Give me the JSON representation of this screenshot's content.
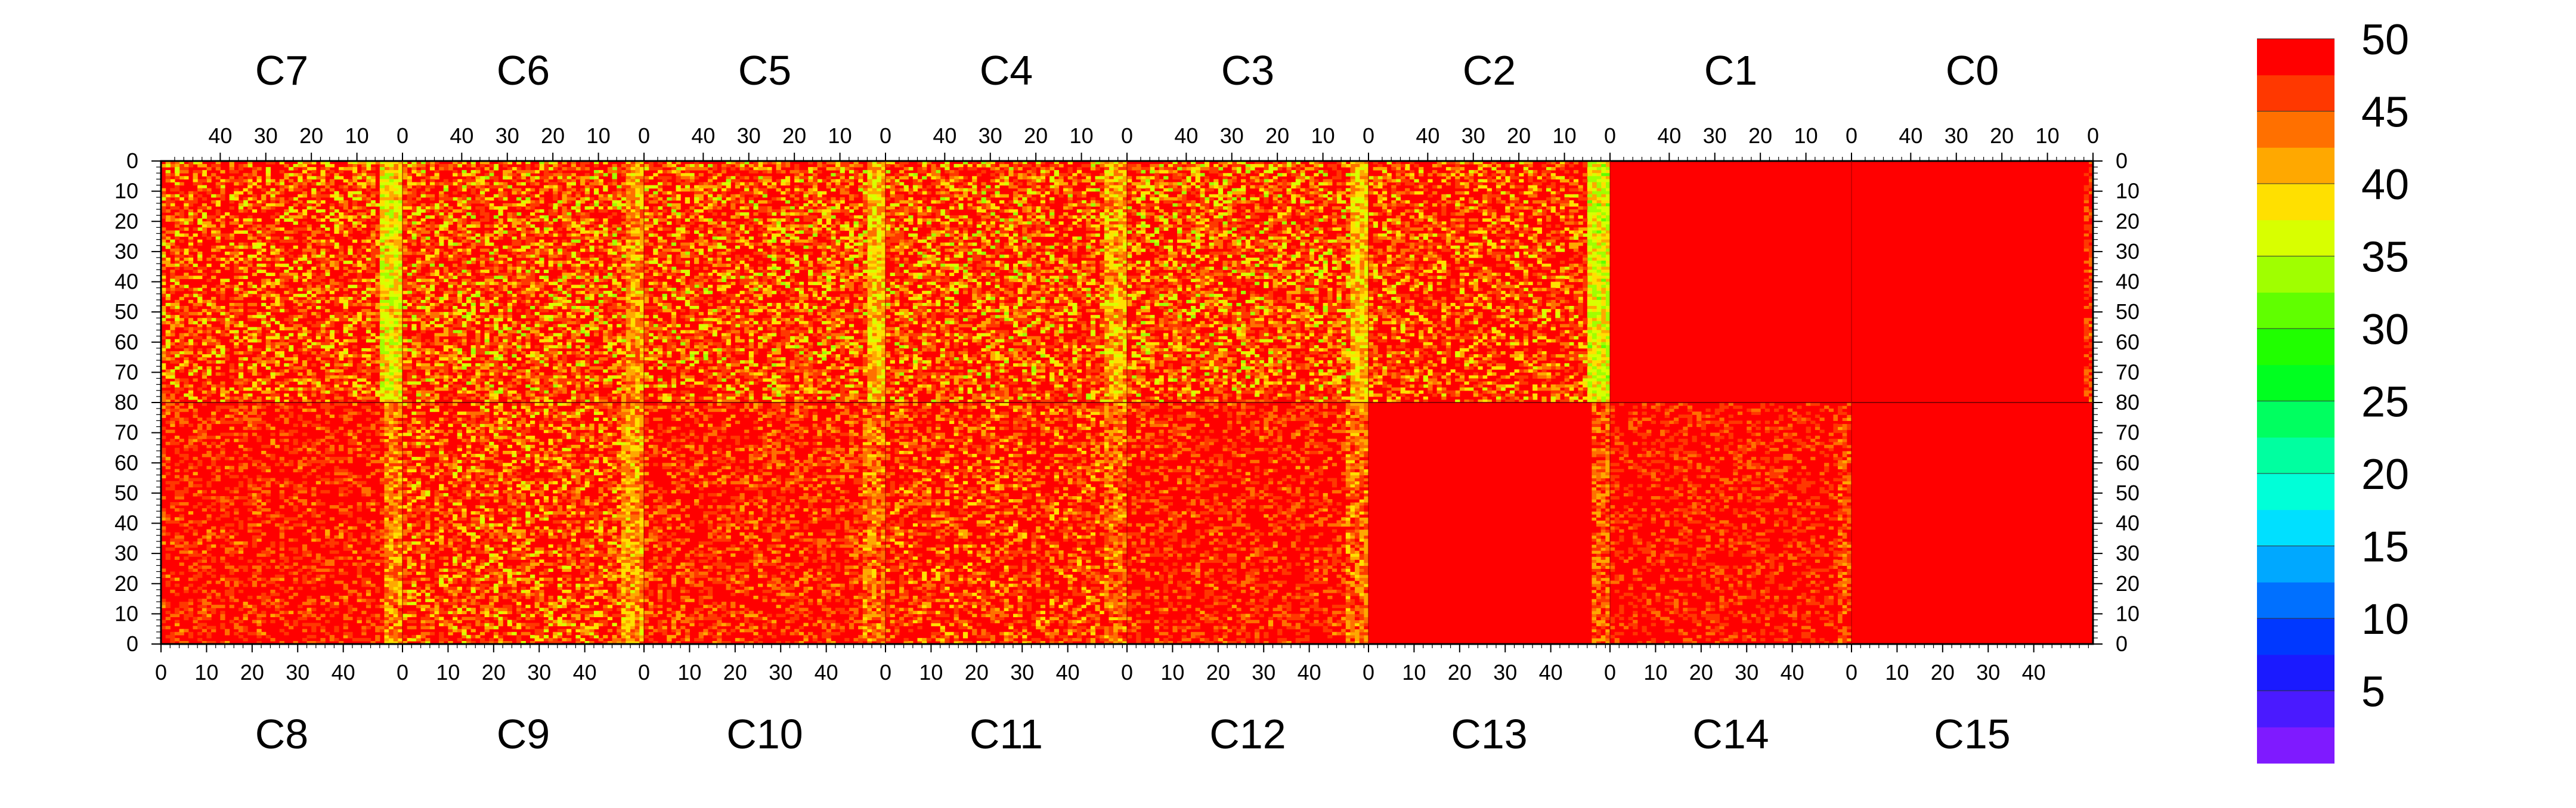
{
  "chart_data": {
    "type": "heatmap",
    "title": "",
    "xlabel": "",
    "ylabel": "",
    "description_grid": "16 channel blocks C0..C15 arranged in two rows of 8 (top row reversed C7..C0, bottom row C8..C15). Each block has x from 0 to 53 and y from 0 to 80; top blocks' y axis increases downward from the midline, bottom blocks' y increases upward from the midline.",
    "blocks_top": [
      "C7",
      "C6",
      "C5",
      "C4",
      "C3",
      "C2",
      "C1",
      "C0"
    ],
    "blocks_bottom": [
      "C8",
      "C9",
      "C10",
      "C11",
      "C12",
      "C13",
      "C14",
      "C15"
    ],
    "x_range": [
      0,
      53
    ],
    "y_range": [
      0,
      80
    ],
    "x_ticks": [
      "0",
      "10",
      "20",
      "30",
      "40"
    ],
    "x_ticks_top": [
      "40",
      "30",
      "20",
      "10",
      "0"
    ],
    "y_ticks_top": [
      "0",
      "10",
      "20",
      "30",
      "40",
      "50",
      "60",
      "70",
      "80"
    ],
    "y_ticks_bottom": [
      "70",
      "60",
      "50",
      "40",
      "30",
      "20",
      "10",
      "0"
    ],
    "colorbar": {
      "min": 0,
      "max": 50,
      "tick_labels": [
        "50",
        "45",
        "40",
        "35",
        "30",
        "25",
        "20",
        "15",
        "10",
        "5"
      ],
      "tick_values": [
        50,
        45,
        40,
        35,
        30,
        25,
        20,
        15,
        10,
        5
      ],
      "colors": [
        "#7f1aff",
        "#4a1aff",
        "#1a1aff",
        "#0038ff",
        "#0070ff",
        "#00a8ff",
        "#00e0ff",
        "#00ffd8",
        "#00ffa0",
        "#00ff60",
        "#00ff20",
        "#20ff00",
        "#60ff00",
        "#a0ff00",
        "#d8ff00",
        "#ffe000",
        "#ffa800",
        "#ff7000",
        "#ff3800",
        "#ff0000"
      ]
    },
    "blocks": {
      "C7": {
        "base": 49.3,
        "variability": 6.5,
        "band_x": [
          0,
          5
        ],
        "band_value": 38
      },
      "C6": {
        "base": 48.7,
        "variability": 7.0,
        "band_x": [
          0,
          4
        ],
        "band_value": 42
      },
      "C5": {
        "base": 48.9,
        "variability": 6.8,
        "band_x": [
          0,
          4
        ],
        "band_value": 40
      },
      "C4": {
        "base": 48.9,
        "variability": 6.8,
        "band_x": [
          0,
          5
        ],
        "band_value": 41
      },
      "C3": {
        "base": 48.8,
        "variability": 7.0,
        "band_x": [
          0,
          4
        ],
        "band_value": 40
      },
      "C2": {
        "base": 49.3,
        "variability": 6.0,
        "band_x": [
          0,
          5
        ],
        "band_value": 37
      },
      "C1": {
        "base": 50.0,
        "variability": 0.2,
        "band_x": [
          0,
          0
        ],
        "band_value": 50
      },
      "C0": {
        "base": 49.9,
        "variability": 0.8,
        "band_x": [
          0,
          2
        ],
        "band_value": 47
      },
      "C8": {
        "base": 49.6,
        "variability": 3.5,
        "band_x": [
          49,
          53
        ],
        "band_value": 43
      },
      "C9": {
        "base": 49.0,
        "variability": 6.0,
        "band_x": [
          48,
          53
        ],
        "band_value": 42
      },
      "C10": {
        "base": 49.5,
        "variability": 4.0,
        "band_x": [
          48,
          53
        ],
        "band_value": 44
      },
      "C11": {
        "base": 49.3,
        "variability": 5.0,
        "band_x": [
          48,
          53
        ],
        "band_value": 44
      },
      "C12": {
        "base": 49.6,
        "variability": 3.5,
        "band_x": [
          48,
          53
        ],
        "band_value": 44
      },
      "C13": {
        "base": 49.9,
        "variability": 1.0,
        "band_x": [
          49,
          53
        ],
        "band_value": 45
      },
      "C14": {
        "base": 49.6,
        "variability": 3.0,
        "band_x": [
          50,
          53
        ],
        "band_value": 46
      },
      "C15": {
        "base": 50.0,
        "variability": 0.2,
        "band_x": [
          0,
          0
        ],
        "band_value": 50
      }
    }
  }
}
